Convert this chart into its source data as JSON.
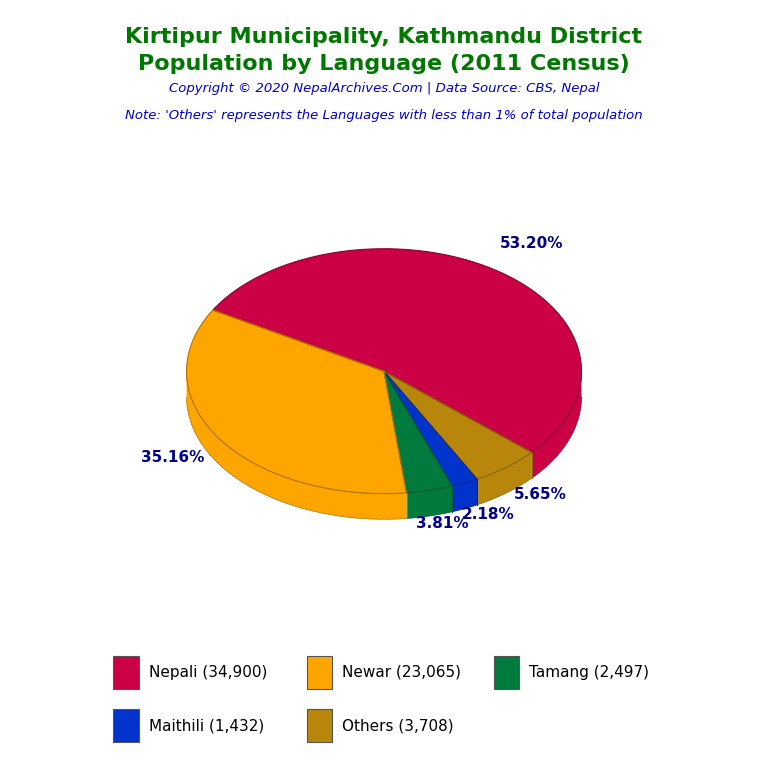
{
  "title_line1": "Kirtipur Municipality, Kathmandu District",
  "title_line2": "Population by Language (2011 Census)",
  "title_color": "#007700",
  "copyright_text": "Copyright © 2020 NepalArchives.Com | Data Source: CBS, Nepal",
  "copyright_color": "#0000CC",
  "note_text": "Note: 'Others' represents the Languages with less than 1% of total population",
  "note_color": "#0000CC",
  "labels": [
    "Nepali",
    "Newar",
    "Tamang",
    "Maithili",
    "Others"
  ],
  "values": [
    34900,
    23065,
    2497,
    1432,
    3708
  ],
  "percentages": [
    53.2,
    35.16,
    3.81,
    2.18,
    5.65
  ],
  "colors": [
    "#CC0044",
    "#FFA500",
    "#007A3D",
    "#0033CC",
    "#B8860B"
  ],
  "side_colors": [
    "#8B002E",
    "#B37400",
    "#005A2D",
    "#002299",
    "#8B6508"
  ],
  "legend_labels": [
    "Nepali (34,900)",
    "Newar (23,065)",
    "Tamang (2,497)",
    "Maithili (1,432)",
    "Others (3,708)"
  ],
  "pct_label_color": "#00008B",
  "background_color": "#FFFFFF",
  "startangle": 150,
  "depth": 0.13
}
